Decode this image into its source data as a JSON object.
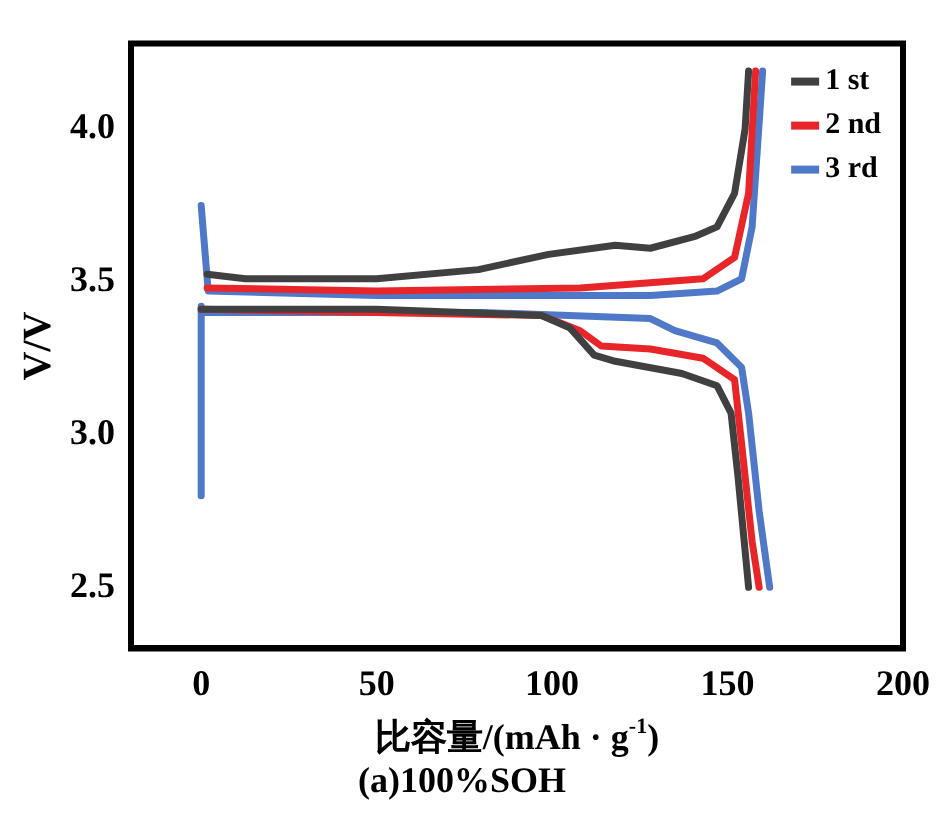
{
  "chart_data": {
    "type": "line",
    "title": "(a)100%SOH",
    "xlabel": "比容量/(mAh · g$^{-1}$)",
    "ylabel": "V/V",
    "xlim": [
      -20,
      200
    ],
    "xticks": [
      0,
      50,
      100,
      150,
      200
    ],
    "ylim": [
      2.3,
      4.28
    ],
    "yticks": [
      2.5,
      {
        "value": 3,
        "label": "3.0"
      },
      3.5,
      {
        "value": 4,
        "label": "4.0"
      }
    ],
    "grid": false,
    "legend": "top right",
    "marker": "none",
    "line_style": "solid",
    "series": [
      {
        "name": "1 st",
        "color": "#404040",
        "x": [
          1.7,
          12.6,
          50,
          79,
          99,
          118,
          128,
          141,
          147,
          152,
          155,
          156,
          null,
          0,
          50,
          97,
          105,
          112,
          118,
          137,
          147,
          151,
          153,
          156
        ],
        "values": [
          3.525,
          3.51,
          3.51,
          3.54,
          3.59,
          3.62,
          3.61,
          3.65,
          3.68,
          3.79,
          4.0,
          4.19,
          null,
          3.41,
          3.41,
          3.39,
          3.35,
          3.26,
          3.24,
          3.2,
          3.16,
          3.07,
          2.86,
          2.5
        ]
      },
      {
        "name": "2 nd",
        "color": "#e8262a",
        "x": [
          1.7,
          50,
          108,
          143,
          152,
          156,
          158,
          null,
          0,
          97,
          108,
          114,
          128,
          143,
          152,
          154,
          157,
          159
        ],
        "values": [
          3.48,
          3.47,
          3.48,
          3.51,
          3.58,
          3.79,
          4.19,
          null,
          3.41,
          3.39,
          3.34,
          3.29,
          3.28,
          3.25,
          3.18,
          2.97,
          2.65,
          2.5
        ]
      },
      {
        "name": "3 rd",
        "color": "#4f78c8",
        "x": [
          0,
          2,
          50,
          128,
          147,
          154,
          157,
          160,
          null,
          0,
          0,
          0,
          80,
          128,
          135,
          147,
          154,
          156,
          159,
          162
        ],
        "values": [
          3.75,
          3.47,
          3.455,
          3.455,
          3.47,
          3.51,
          3.68,
          4.19,
          null,
          2.8,
          3.42,
          3.4,
          3.4,
          3.38,
          3.34,
          3.3,
          3.22,
          3.07,
          2.75,
          2.5
        ]
      }
    ]
  }
}
